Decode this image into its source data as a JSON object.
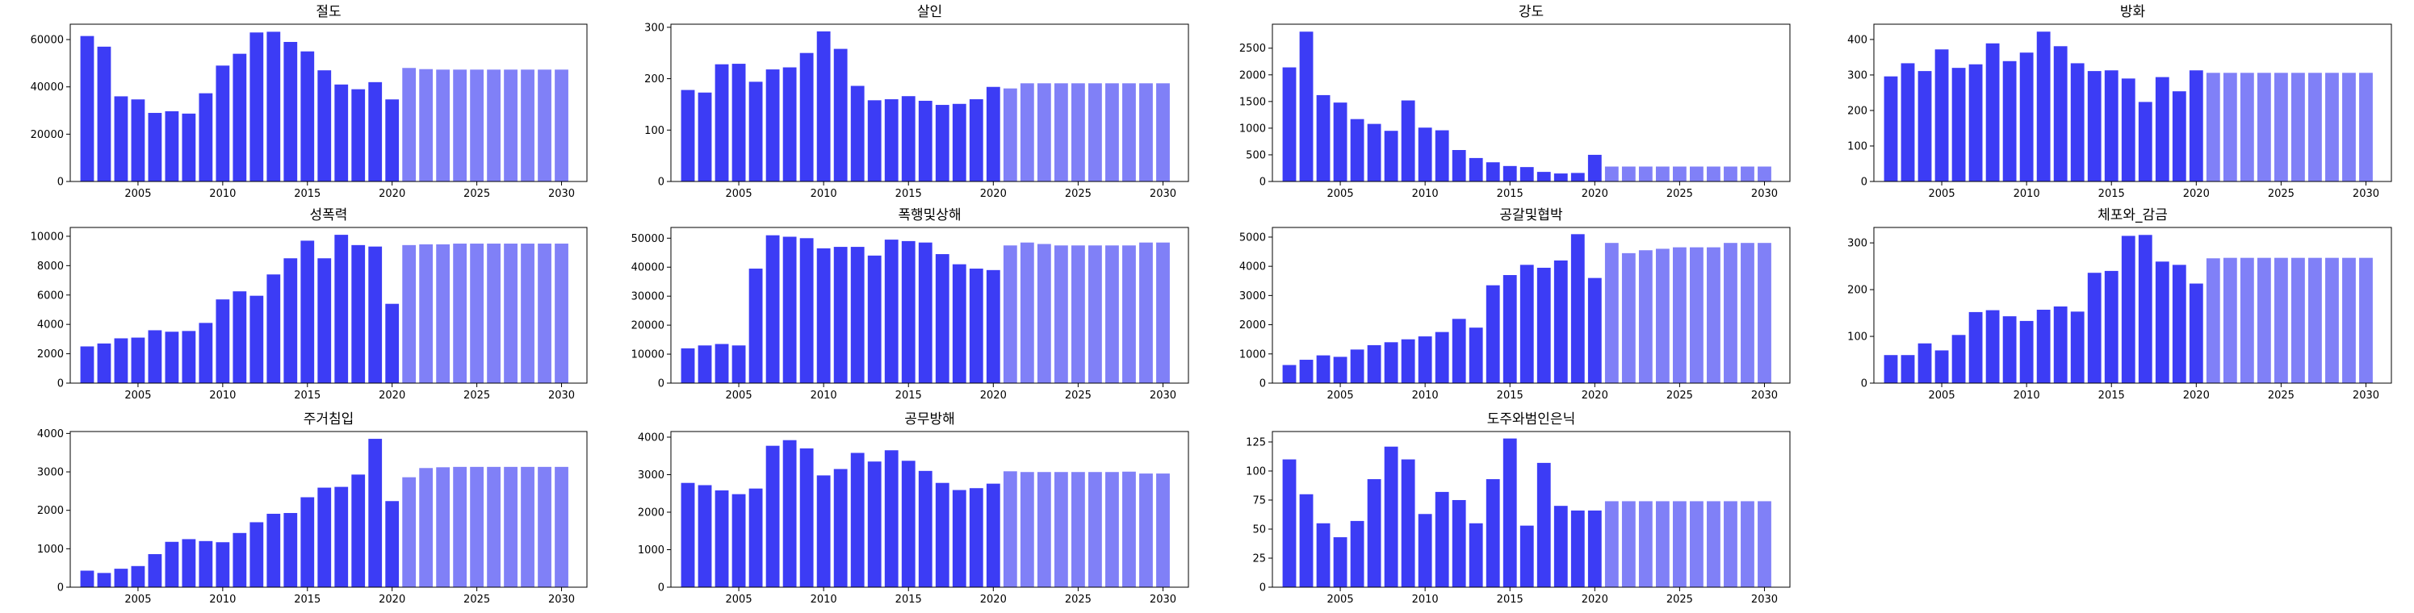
{
  "figure": {
    "actual_color": "#3c3cf5",
    "forecast_color": "#8080f7"
  },
  "chart_data": [
    {
      "type": "bar",
      "title": "절도",
      "grid": false,
      "x": [
        2002,
        2003,
        2004,
        2005,
        2006,
        2007,
        2008,
        2009,
        2010,
        2011,
        2012,
        2013,
        2014,
        2015,
        2016,
        2017,
        2018,
        2019,
        2020,
        2021,
        2022,
        2023,
        2024,
        2025,
        2026,
        2027,
        2028,
        2029,
        2030
      ],
      "values": [
        61500,
        57000,
        36000,
        34700,
        29000,
        29700,
        28700,
        37300,
        49000,
        54000,
        63000,
        63300,
        59000,
        55000,
        47000,
        41000,
        39000,
        42000,
        34700,
        48000,
        47500,
        47300,
        47300,
        47300,
        47300,
        47300,
        47300,
        47300,
        47300
      ],
      "actual_until": 2020,
      "xlim": [
        2001,
        2031.5
      ],
      "ylim": [
        0,
        66500
      ],
      "xticks": [
        2005,
        2010,
        2015,
        2020,
        2025,
        2030
      ],
      "yticks": [
        0,
        20000,
        40000,
        60000
      ]
    },
    {
      "type": "bar",
      "title": "살인",
      "grid": false,
      "x": [
        2002,
        2003,
        2004,
        2005,
        2006,
        2007,
        2008,
        2009,
        2010,
        2011,
        2012,
        2013,
        2014,
        2015,
        2016,
        2017,
        2018,
        2019,
        2020,
        2021,
        2022,
        2023,
        2024,
        2025,
        2026,
        2027,
        2028,
        2029,
        2030
      ],
      "values": [
        178,
        173,
        228,
        229,
        194,
        218,
        222,
        250,
        292,
        258,
        186,
        158,
        160,
        166,
        157,
        149,
        151,
        160,
        184,
        181,
        191,
        191,
        191,
        191,
        191,
        191,
        191,
        191,
        191
      ],
      "actual_until": 2020,
      "xlim": [
        2001,
        2031.5
      ],
      "ylim": [
        0,
        306
      ],
      "xticks": [
        2005,
        2010,
        2015,
        2020,
        2025,
        2030
      ],
      "yticks": [
        0,
        100,
        200,
        300
      ]
    },
    {
      "type": "bar",
      "title": "강도",
      "grid": false,
      "x": [
        2002,
        2003,
        2004,
        2005,
        2006,
        2007,
        2008,
        2009,
        2010,
        2011,
        2012,
        2013,
        2014,
        2015,
        2016,
        2017,
        2018,
        2019,
        2020,
        2021,
        2022,
        2023,
        2024,
        2025,
        2026,
        2027,
        2028,
        2029,
        2030
      ],
      "values": [
        2140,
        2810,
        1620,
        1480,
        1170,
        1080,
        950,
        1520,
        1010,
        960,
        590,
        440,
        360,
        290,
        270,
        180,
        150,
        160,
        500,
        280,
        280,
        280,
        280,
        280,
        280,
        280,
        280,
        280,
        280
      ],
      "actual_until": 2020,
      "xlim": [
        2001,
        2031.5
      ],
      "ylim": [
        0,
        2950
      ],
      "xticks": [
        2005,
        2010,
        2015,
        2020,
        2025,
        2030
      ],
      "yticks": [
        0,
        500,
        1000,
        1500,
        2000,
        2500
      ]
    },
    {
      "type": "bar",
      "title": "방화",
      "grid": false,
      "x": [
        2002,
        2003,
        2004,
        2005,
        2006,
        2007,
        2008,
        2009,
        2010,
        2011,
        2012,
        2013,
        2014,
        2015,
        2016,
        2017,
        2018,
        2019,
        2020,
        2021,
        2022,
        2023,
        2024,
        2025,
        2026,
        2027,
        2028,
        2029,
        2030
      ],
      "values": [
        296,
        333,
        311,
        372,
        320,
        330,
        389,
        339,
        363,
        422,
        381,
        333,
        311,
        313,
        290,
        224,
        294,
        254,
        313,
        306,
        306,
        306,
        306,
        306,
        306,
        306,
        306,
        306,
        306
      ],
      "actual_until": 2020,
      "xlim": [
        2001,
        2031.5
      ],
      "ylim": [
        0,
        443
      ],
      "xticks": [
        2005,
        2010,
        2015,
        2020,
        2025,
        2030
      ],
      "yticks": [
        0,
        100,
        200,
        300,
        400
      ]
    },
    {
      "type": "bar",
      "title": "성폭력",
      "grid": false,
      "x": [
        2002,
        2003,
        2004,
        2005,
        2006,
        2007,
        2008,
        2009,
        2010,
        2011,
        2012,
        2013,
        2014,
        2015,
        2016,
        2017,
        2018,
        2019,
        2020,
        2021,
        2022,
        2023,
        2024,
        2025,
        2026,
        2027,
        2028,
        2029,
        2030
      ],
      "values": [
        2500,
        2700,
        3050,
        3100,
        3600,
        3500,
        3550,
        4100,
        5700,
        6250,
        5950,
        7400,
        8500,
        9700,
        8500,
        10100,
        9400,
        9300,
        5400,
        9400,
        9450,
        9450,
        9500,
        9500,
        9500,
        9500,
        9500,
        9500,
        9500
      ],
      "actual_until": 2020,
      "xlim": [
        2001,
        2031.5
      ],
      "ylim": [
        0,
        10600
      ],
      "xticks": [
        2005,
        2010,
        2015,
        2020,
        2025,
        2030
      ],
      "yticks": [
        0,
        2000,
        4000,
        6000,
        8000,
        10000
      ]
    },
    {
      "type": "bar",
      "title": "폭행및상해",
      "grid": false,
      "x": [
        2002,
        2003,
        2004,
        2005,
        2006,
        2007,
        2008,
        2009,
        2010,
        2011,
        2012,
        2013,
        2014,
        2015,
        2016,
        2017,
        2018,
        2019,
        2020,
        2021,
        2022,
        2023,
        2024,
        2025,
        2026,
        2027,
        2028,
        2029,
        2030
      ],
      "values": [
        12000,
        13000,
        13500,
        13000,
        39500,
        51000,
        50500,
        50000,
        46500,
        47000,
        47000,
        44000,
        49500,
        49000,
        48500,
        44500,
        41000,
        39500,
        39000,
        47500,
        48500,
        48000,
        47500,
        47500,
        47500,
        47500,
        47500,
        48500,
        48500
      ],
      "actual_until": 2020,
      "xlim": [
        2001,
        2031.5
      ],
      "ylim": [
        0,
        53700
      ],
      "xticks": [
        2005,
        2010,
        2015,
        2020,
        2025,
        2030
      ],
      "yticks": [
        0,
        10000,
        20000,
        30000,
        40000,
        50000
      ]
    },
    {
      "type": "bar",
      "title": "공갈및협박",
      "grid": false,
      "x": [
        2002,
        2003,
        2004,
        2005,
        2006,
        2007,
        2008,
        2009,
        2010,
        2011,
        2012,
        2013,
        2014,
        2015,
        2016,
        2017,
        2018,
        2019,
        2020,
        2021,
        2022,
        2023,
        2024,
        2025,
        2026,
        2027,
        2028,
        2029,
        2030
      ],
      "values": [
        620,
        800,
        950,
        900,
        1150,
        1300,
        1400,
        1500,
        1600,
        1750,
        2200,
        1900,
        3350,
        3700,
        4050,
        3950,
        4200,
        5100,
        3600,
        4800,
        4450,
        4550,
        4600,
        4650,
        4650,
        4650,
        4800,
        4800,
        4800
      ],
      "actual_until": 2020,
      "xlim": [
        2001,
        2031.5
      ],
      "ylim": [
        0,
        5330
      ],
      "xticks": [
        2005,
        2010,
        2015,
        2020,
        2025,
        2030
      ],
      "yticks": [
        0,
        1000,
        2000,
        3000,
        4000,
        5000
      ]
    },
    {
      "type": "bar",
      "title": "체포와_감금",
      "grid": false,
      "x": [
        2002,
        2003,
        2004,
        2005,
        2006,
        2007,
        2008,
        2009,
        2010,
        2011,
        2012,
        2013,
        2014,
        2015,
        2016,
        2017,
        2018,
        2019,
        2020,
        2021,
        2022,
        2023,
        2024,
        2025,
        2026,
        2027,
        2028,
        2029,
        2030
      ],
      "values": [
        60,
        60,
        85,
        70,
        103,
        152,
        156,
        143,
        133,
        157,
        164,
        153,
        236,
        240,
        315,
        317,
        260,
        253,
        213,
        267,
        268,
        268,
        268,
        268,
        268,
        268,
        268,
        268,
        268
      ],
      "actual_until": 2020,
      "xlim": [
        2001,
        2031.5
      ],
      "ylim": [
        0,
        333
      ],
      "xticks": [
        2005,
        2010,
        2015,
        2020,
        2025,
        2030
      ],
      "yticks": [
        0,
        100,
        200,
        300
      ]
    },
    {
      "type": "bar",
      "title": "주거침입",
      "grid": false,
      "x": [
        2002,
        2003,
        2004,
        2005,
        2006,
        2007,
        2008,
        2009,
        2010,
        2011,
        2012,
        2013,
        2014,
        2015,
        2016,
        2017,
        2018,
        2019,
        2020,
        2021,
        2022,
        2023,
        2024,
        2025,
        2026,
        2027,
        2028,
        2029,
        2030
      ],
      "values": [
        430,
        370,
        480,
        550,
        860,
        1180,
        1250,
        1200,
        1170,
        1410,
        1690,
        1910,
        1930,
        2340,
        2590,
        2610,
        2930,
        3860,
        2240,
        2860,
        3100,
        3120,
        3130,
        3130,
        3130,
        3130,
        3130,
        3130,
        3130
      ],
      "actual_until": 2020,
      "xlim": [
        2001,
        2031.5
      ],
      "ylim": [
        0,
        4050
      ],
      "xticks": [
        2005,
        2010,
        2015,
        2020,
        2025,
        2030
      ],
      "yticks": [
        0,
        1000,
        2000,
        3000,
        4000
      ]
    },
    {
      "type": "bar",
      "title": "공무방해",
      "grid": false,
      "x": [
        2002,
        2003,
        2004,
        2005,
        2006,
        2007,
        2008,
        2009,
        2010,
        2011,
        2012,
        2013,
        2014,
        2015,
        2016,
        2017,
        2018,
        2019,
        2020,
        2021,
        2022,
        2023,
        2024,
        2025,
        2026,
        2027,
        2028,
        2029,
        2030
      ],
      "values": [
        2780,
        2720,
        2580,
        2480,
        2630,
        3770,
        3920,
        3700,
        2980,
        3150,
        3580,
        3350,
        3650,
        3370,
        3100,
        2780,
        2590,
        2640,
        2760,
        3090,
        3070,
        3070,
        3070,
        3070,
        3070,
        3070,
        3080,
        3030,
        3030
      ],
      "actual_until": 2020,
      "xlim": [
        2001,
        2031.5
      ],
      "ylim": [
        0,
        4150
      ],
      "xticks": [
        2005,
        2010,
        2015,
        2020,
        2025,
        2030
      ],
      "yticks": [
        0,
        1000,
        2000,
        3000,
        4000
      ]
    },
    {
      "type": "bar",
      "title": "도주와범인은닉",
      "grid": false,
      "x": [
        2002,
        2003,
        2004,
        2005,
        2006,
        2007,
        2008,
        2009,
        2010,
        2011,
        2012,
        2013,
        2014,
        2015,
        2016,
        2017,
        2018,
        2019,
        2020,
        2021,
        2022,
        2023,
        2024,
        2025,
        2026,
        2027,
        2028,
        2029,
        2030
      ],
      "values": [
        110,
        80,
        55,
        43,
        57,
        93,
        121,
        110,
        63,
        82,
        75,
        55,
        93,
        128,
        53,
        107,
        70,
        66,
        66,
        74,
        74,
        74,
        74,
        74,
        74,
        74,
        74,
        74,
        74
      ],
      "actual_until": 2020,
      "xlim": [
        2001,
        2031.5
      ],
      "ylim": [
        0,
        134
      ],
      "xticks": [
        2005,
        2010,
        2015,
        2020,
        2025,
        2030
      ],
      "yticks": [
        0,
        25,
        50,
        75,
        100,
        125
      ]
    }
  ]
}
